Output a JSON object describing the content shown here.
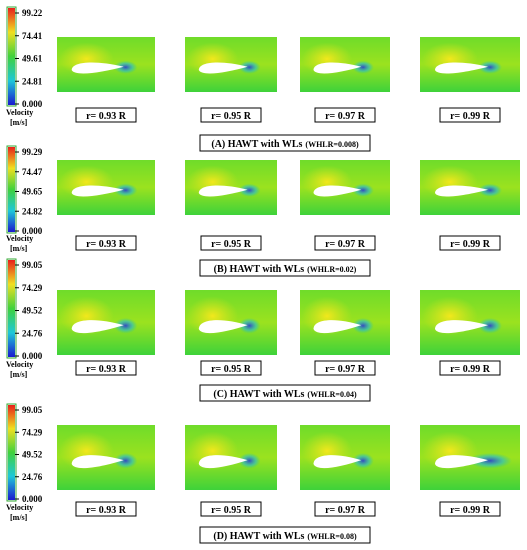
{
  "rows": [
    {
      "colorbar": {
        "ticks": [
          "99.22",
          "74.41",
          "49.61",
          "24.81",
          "0.000"
        ],
        "label": "Velocity",
        "unit": "[m/s]"
      },
      "panels": [
        "r= 0.93 R",
        "r= 0.95 R",
        "r= 0.97 R",
        "r= 0.99 R"
      ],
      "caption": {
        "main": "(A) HAWT with WLs",
        "param": "(WHLR=0.008)"
      }
    },
    {
      "colorbar": {
        "ticks": [
          "99.29",
          "74.47",
          "49.65",
          "24.82",
          "0.000"
        ],
        "label": "Velocity",
        "unit": "[m/s]"
      },
      "panels": [
        "r= 0.93 R",
        "r= 0.95 R",
        "r= 0.97 R",
        "r= 0.99 R"
      ],
      "caption": {
        "main": "(B) HAWT with WLs",
        "param": "(WHLR=0.02)"
      }
    },
    {
      "colorbar": {
        "ticks": [
          "99.05",
          "74.29",
          "49.52",
          "24.76",
          "0.000"
        ],
        "label": "Velocity",
        "unit": "[m/s]"
      },
      "panels": [
        "r= 0.93 R",
        "r= 0.95 R",
        "r= 0.97 R",
        "r= 0.99 R"
      ],
      "caption": {
        "main": "(C) HAWT with WLs",
        "param": "(WHLR=0.04)"
      }
    },
    {
      "colorbar": {
        "ticks": [
          "99.05",
          "74.29",
          "49.52",
          "24.76",
          "0.000"
        ],
        "label": "Velocity",
        "unit": "[m/s]"
      },
      "panels": [
        "r= 0.93 R",
        "r= 0.95 R",
        "r= 0.97 R",
        "r= 0.99 R"
      ],
      "caption": {
        "main": "(D) HAWT with WLs",
        "param": "(WHLR=0.08)"
      }
    }
  ]
}
